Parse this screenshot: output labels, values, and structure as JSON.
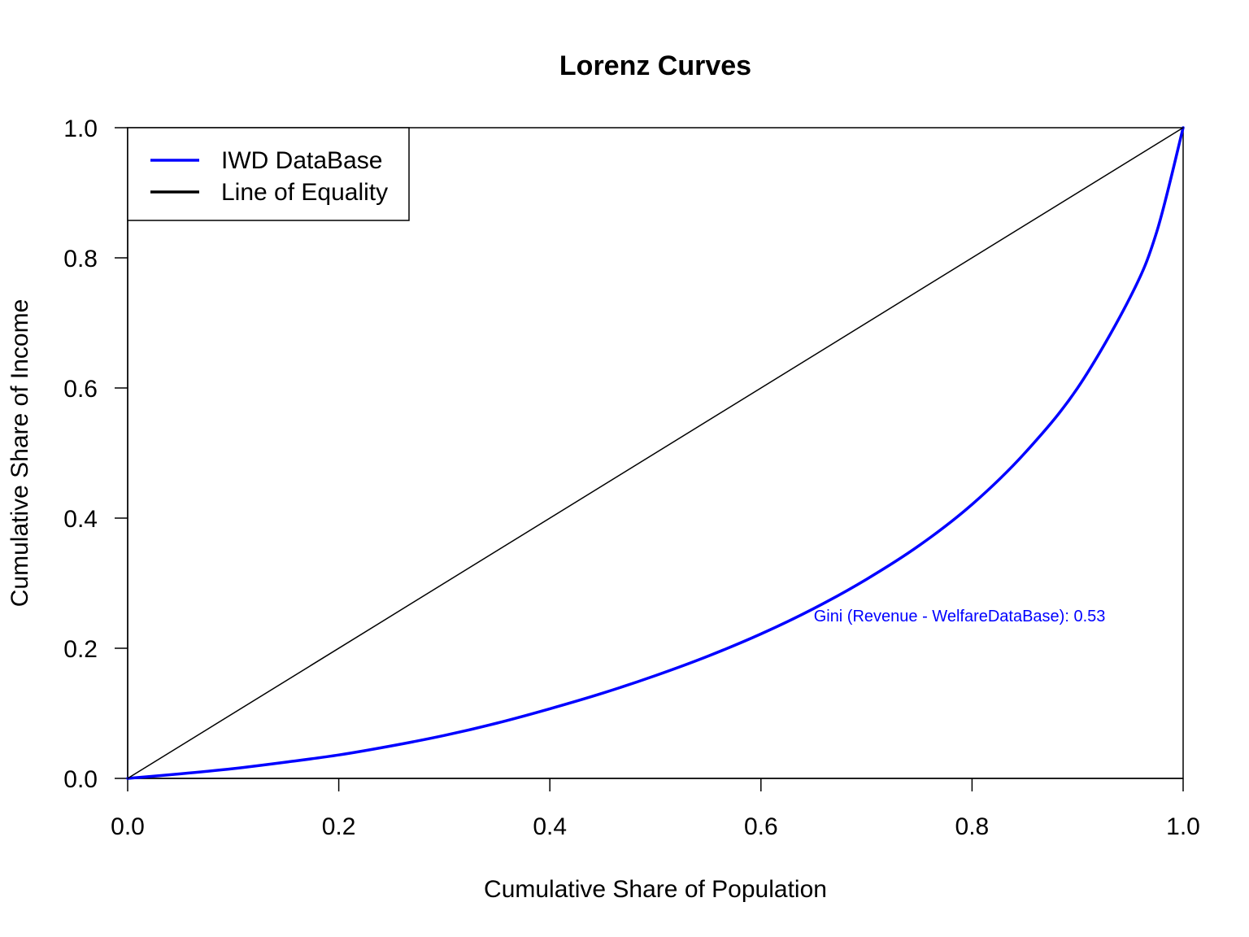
{
  "chart_data": {
    "type": "line",
    "title": "Lorenz Curves",
    "xlabel": "Cumulative Share of Population",
    "ylabel": "Cumulative Share of Income",
    "xlim": [
      0,
      1
    ],
    "ylim": [
      0,
      1
    ],
    "x_ticks": [
      "0.0",
      "0.2",
      "0.4",
      "0.6",
      "0.8",
      "1.0"
    ],
    "y_ticks": [
      "0.0",
      "0.2",
      "0.4",
      "0.6",
      "0.8",
      "1.0"
    ],
    "grid": false,
    "legend_position": "top-left",
    "series": [
      {
        "name": "IWD DataBase",
        "color": "#0000ff",
        "x": [
          0,
          0.05,
          0.1,
          0.15,
          0.2,
          0.25,
          0.3,
          0.35,
          0.4,
          0.45,
          0.5,
          0.55,
          0.6,
          0.65,
          0.7,
          0.75,
          0.8,
          0.85,
          0.9,
          0.95,
          0.975,
          1.0
        ],
        "y": [
          0,
          0.007,
          0.015,
          0.025,
          0.036,
          0.05,
          0.066,
          0.085,
          0.107,
          0.131,
          0.158,
          0.188,
          0.222,
          0.261,
          0.306,
          0.358,
          0.421,
          0.5,
          0.6,
          0.74,
          0.84,
          1.0
        ]
      },
      {
        "name": "Line of Equality",
        "color": "#000000",
        "x": [
          0,
          1
        ],
        "y": [
          0,
          1
        ]
      }
    ],
    "annotations": [
      {
        "text": "Gini (Revenue - WelfareDataBase): 0.53",
        "x": 0.65,
        "y": 0.25,
        "color": "#0000ff"
      }
    ]
  }
}
